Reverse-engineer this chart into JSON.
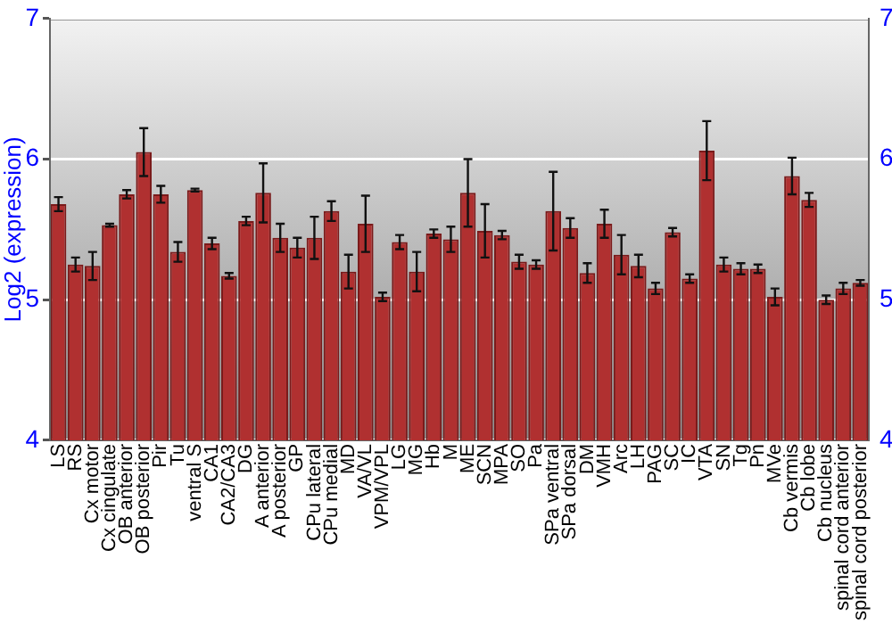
{
  "chart_data": {
    "type": "bar",
    "ylabel": "Log2 (expression)",
    "categories": [
      "LS",
      "RS",
      "Cx motor",
      "Cx cingulate",
      "OB anterior",
      "OB posterior",
      "Pir",
      "Tu",
      "ventral S",
      "CA1",
      "CA2/CA3",
      "DG",
      "A anterior",
      "A posterior",
      "GP",
      "CPu lateral",
      "CPu medial",
      "MD",
      "VA/VL",
      "VPM/VPL",
      "LG",
      "MG",
      "Hb",
      "M",
      "ME",
      "SCN",
      "MPA",
      "SO",
      "Pa",
      "SPa ventral",
      "SPa dorsal",
      "DM",
      "VMH",
      "Arc",
      "LH",
      "PAG",
      "SC",
      "IC",
      "VTA",
      "SN",
      "Tg",
      "Pn",
      "MVe",
      "Cb vermis",
      "Cb lobe",
      "Cb nucleus",
      "spinal cord anterior",
      "spinal cord posterior"
    ],
    "values": [
      5.68,
      5.25,
      5.24,
      5.53,
      5.75,
      6.05,
      5.75,
      5.34,
      5.78,
      5.4,
      5.17,
      5.56,
      5.76,
      5.44,
      5.37,
      5.44,
      5.63,
      5.2,
      5.54,
      5.02,
      5.41,
      5.2,
      5.47,
      5.43,
      5.76,
      5.49,
      5.46,
      5.27,
      5.25,
      5.63,
      5.51,
      5.19,
      5.54,
      5.32,
      5.24,
      5.08,
      5.48,
      5.15,
      6.06,
      5.25,
      5.22,
      5.22,
      5.02,
      5.88,
      5.71,
      5.0,
      5.08,
      5.12
    ],
    "errors": [
      0.05,
      0.05,
      0.1,
      0.01,
      0.03,
      0.17,
      0.06,
      0.07,
      0.01,
      0.04,
      0.02,
      0.03,
      0.21,
      0.1,
      0.07,
      0.15,
      0.07,
      0.12,
      0.2,
      0.03,
      0.05,
      0.14,
      0.03,
      0.09,
      0.24,
      0.19,
      0.03,
      0.05,
      0.03,
      0.28,
      0.07,
      0.07,
      0.1,
      0.14,
      0.08,
      0.04,
      0.03,
      0.03,
      0.21,
      0.05,
      0.04,
      0.03,
      0.06,
      0.13,
      0.05,
      0.03,
      0.04,
      0.02
    ],
    "color": "#b03030",
    "ylim": [
      4,
      7
    ],
    "yticks": [
      4,
      5,
      6,
      7
    ],
    "y2lim": [
      4,
      7
    ],
    "y2ticks": [
      4,
      5,
      6,
      7
    ],
    "grid": "y",
    "legend": false
  }
}
